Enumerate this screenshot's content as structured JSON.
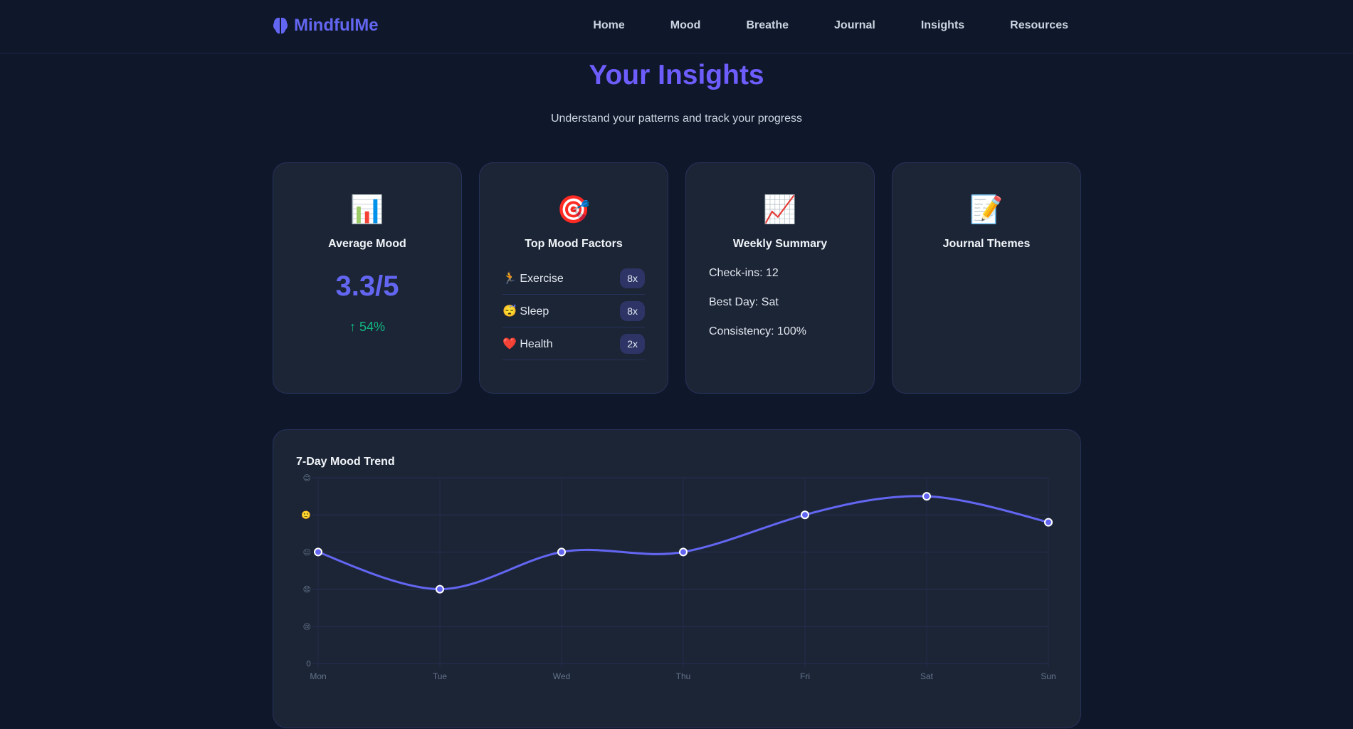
{
  "brand": {
    "name": "MindfulMe",
    "icon": "brain-icon",
    "color": "#6366f1"
  },
  "nav": [
    "Home",
    "Mood",
    "Breathe",
    "Journal",
    "Insights",
    "Resources"
  ],
  "header": {
    "title": "Your Insights",
    "subtitle": "Understand your patterns and track your progress"
  },
  "cards": {
    "average": {
      "icon": "📊",
      "title": "Average Mood",
      "value": "3.3/5",
      "change": "↑ 54%"
    },
    "factors": {
      "icon": "🎯",
      "title": "Top Mood Factors",
      "items": [
        {
          "emoji": "🏃",
          "label": "Exercise",
          "count": "8x"
        },
        {
          "emoji": "😴",
          "label": "Sleep",
          "count": "8x"
        },
        {
          "emoji": "❤️",
          "label": "Health",
          "count": "2x"
        }
      ]
    },
    "weekly": {
      "icon": "📈",
      "title": "Weekly Summary",
      "lines": [
        "Check-ins: 12",
        "Best Day: Sat",
        "Consistency: 100%"
      ]
    },
    "themes": {
      "icon": "📝",
      "title": "Journal Themes"
    }
  },
  "chart_data": {
    "type": "line",
    "title": "7-Day Mood Trend",
    "categories": [
      "Mon",
      "Tue",
      "Wed",
      "Thu",
      "Fri",
      "Sat",
      "Sun"
    ],
    "values": [
      3,
      2,
      3,
      3,
      4,
      4.5,
      3.8
    ],
    "ylim": [
      0,
      5
    ],
    "yticks": [
      "0",
      "😢",
      "😟",
      "😐",
      "🙂",
      "😊"
    ],
    "line_color": "#6366f1",
    "grid": true,
    "smooth": true
  }
}
